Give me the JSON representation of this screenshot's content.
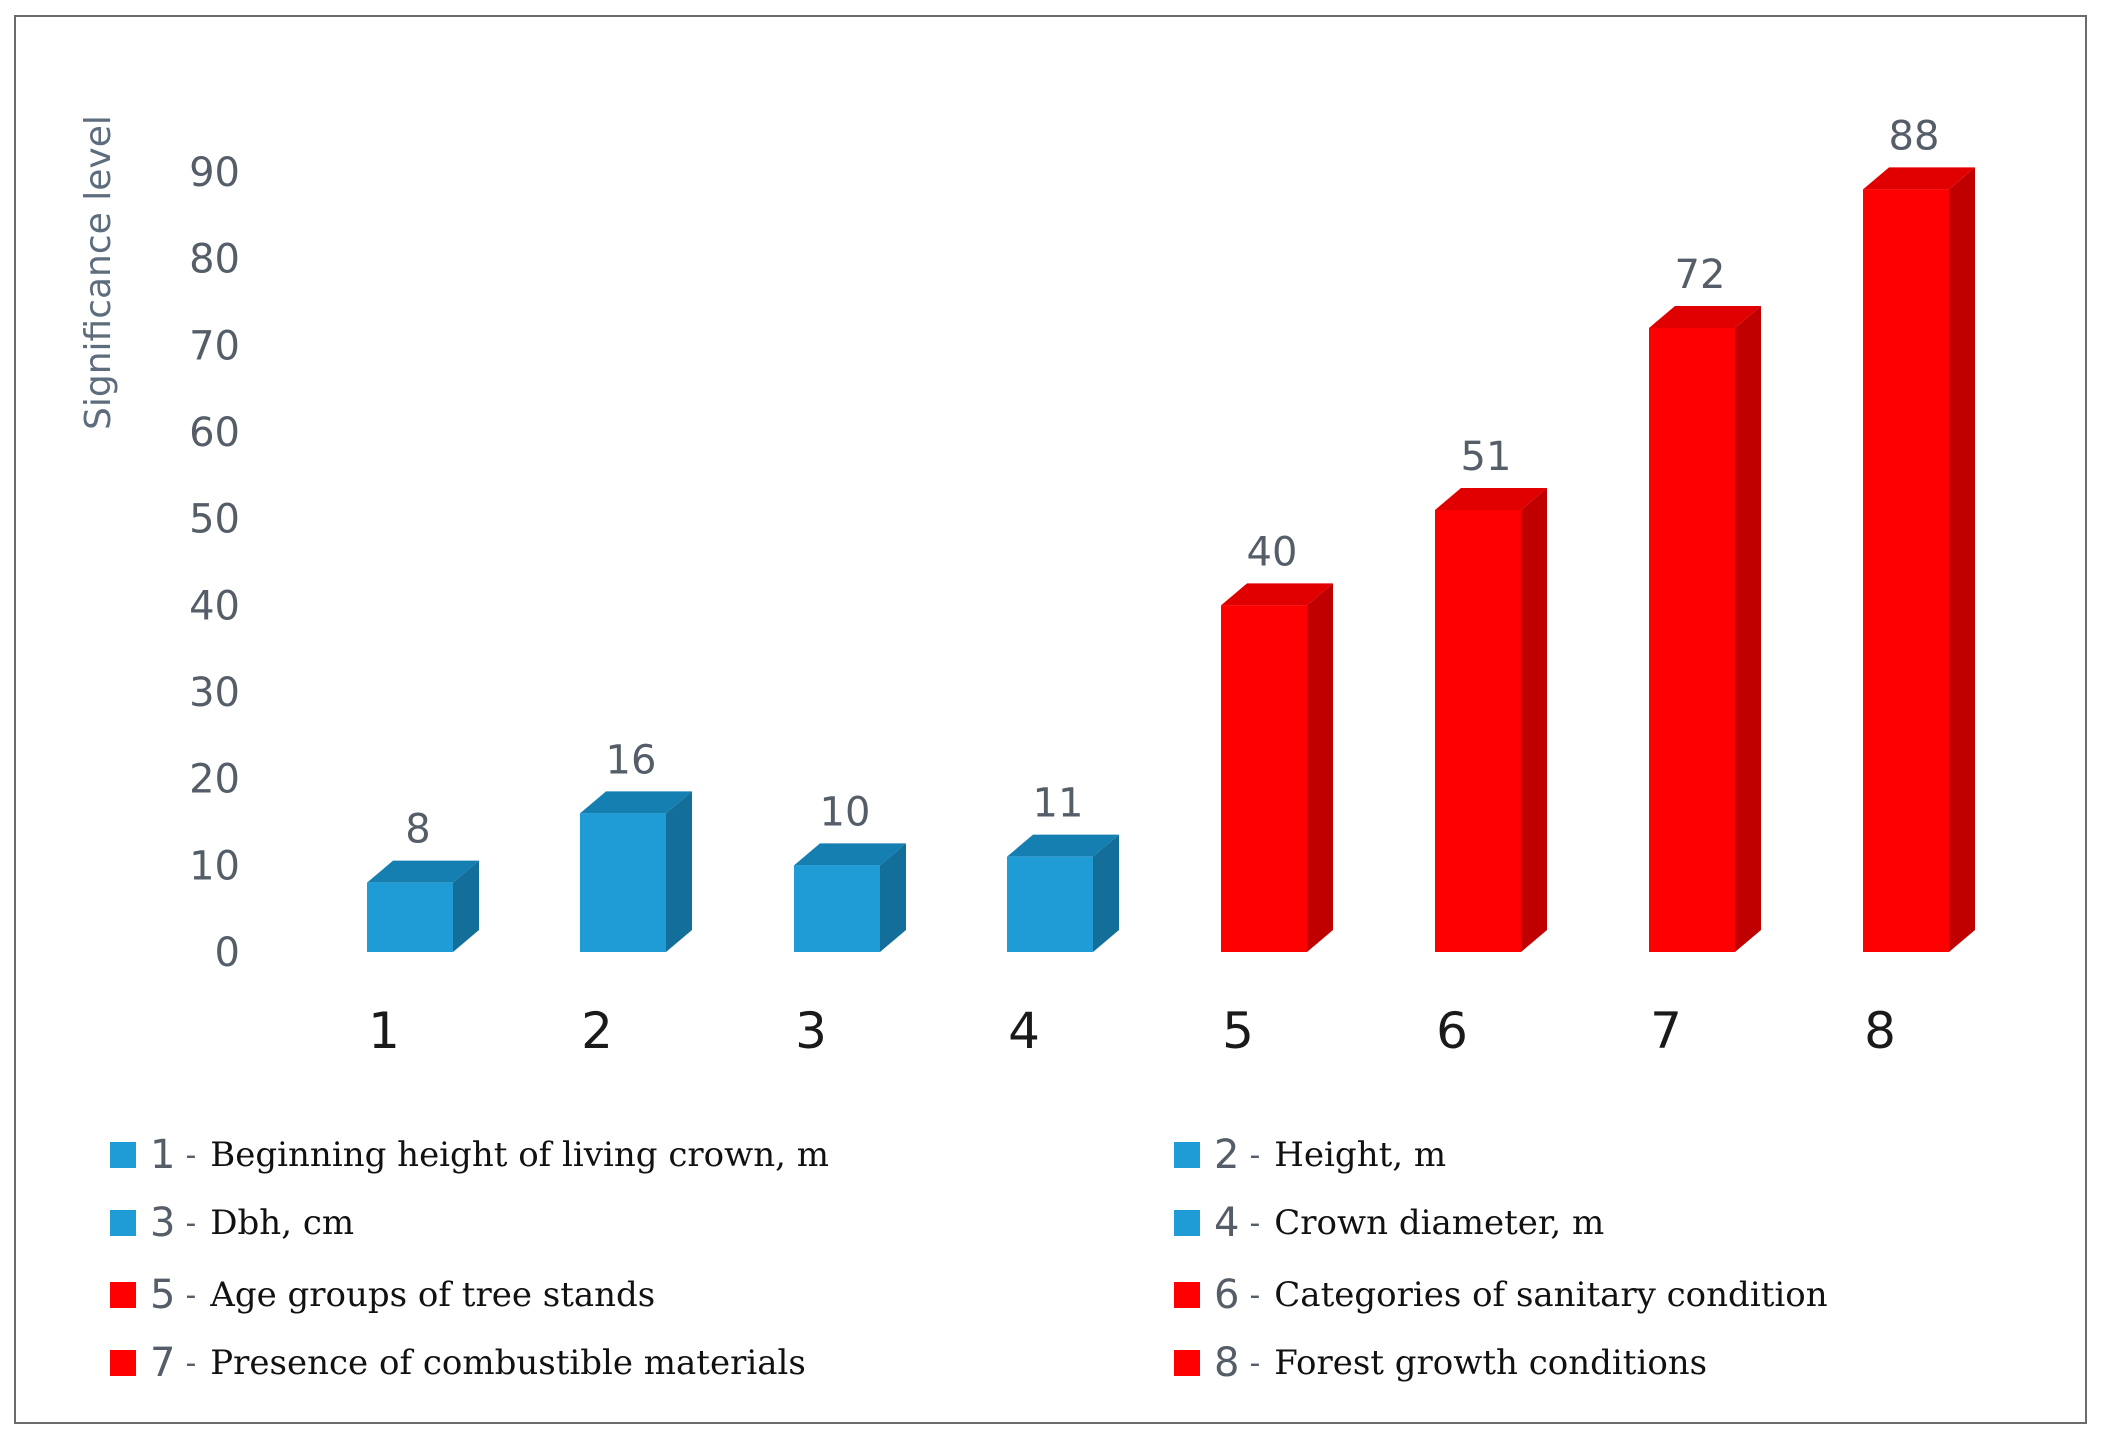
{
  "colors": {
    "blue": "#1f9bd6",
    "blue_side": "#136e9a",
    "blue_top": "#157fb1",
    "red": "#ff0000",
    "red_side": "#c00000",
    "red_top": "#e00000"
  },
  "chart_data": {
    "type": "bar",
    "ylabel": "Significance level",
    "ylim": [
      0,
      90
    ],
    "yticks": [
      "0",
      "10",
      "20",
      "30",
      "40",
      "50",
      "60",
      "70",
      "80",
      "90"
    ],
    "categories": [
      "1",
      "2",
      "3",
      "4",
      "5",
      "6",
      "7",
      "8"
    ],
    "values": [
      8,
      16,
      10,
      11,
      40,
      51,
      72,
      88
    ],
    "data_labels": [
      "8",
      "16",
      "10",
      "11",
      "40",
      "51",
      "72",
      "88"
    ],
    "bar_colors": [
      "blue",
      "blue",
      "blue",
      "blue",
      "red",
      "red",
      "red",
      "red"
    ],
    "grid": false
  },
  "legend": [
    {
      "num": "1",
      "dash": "-",
      "text": "Beginning height of living crown, m",
      "color": "blue"
    },
    {
      "num": "2",
      "dash": "-",
      "text": "Height, m",
      "color": "blue"
    },
    {
      "num": "3",
      "dash": "-",
      "text": "Dbh, cm",
      "color": "blue"
    },
    {
      "num": "4",
      "dash": "-",
      "text": "Crown diameter, m",
      "color": "blue"
    },
    {
      "num": "5",
      "dash": "-",
      "text": "Age groups of tree stands",
      "color": "red"
    },
    {
      "num": "6",
      "dash": "-",
      "text": "Categories of sanitary condition",
      "color": "red"
    },
    {
      "num": "7",
      "dash": "-",
      "text": "Presence of combustible materials",
      "color": "red"
    },
    {
      "num": "8",
      "dash": "-",
      "text": "Forest growth conditions",
      "color": "red"
    }
  ]
}
